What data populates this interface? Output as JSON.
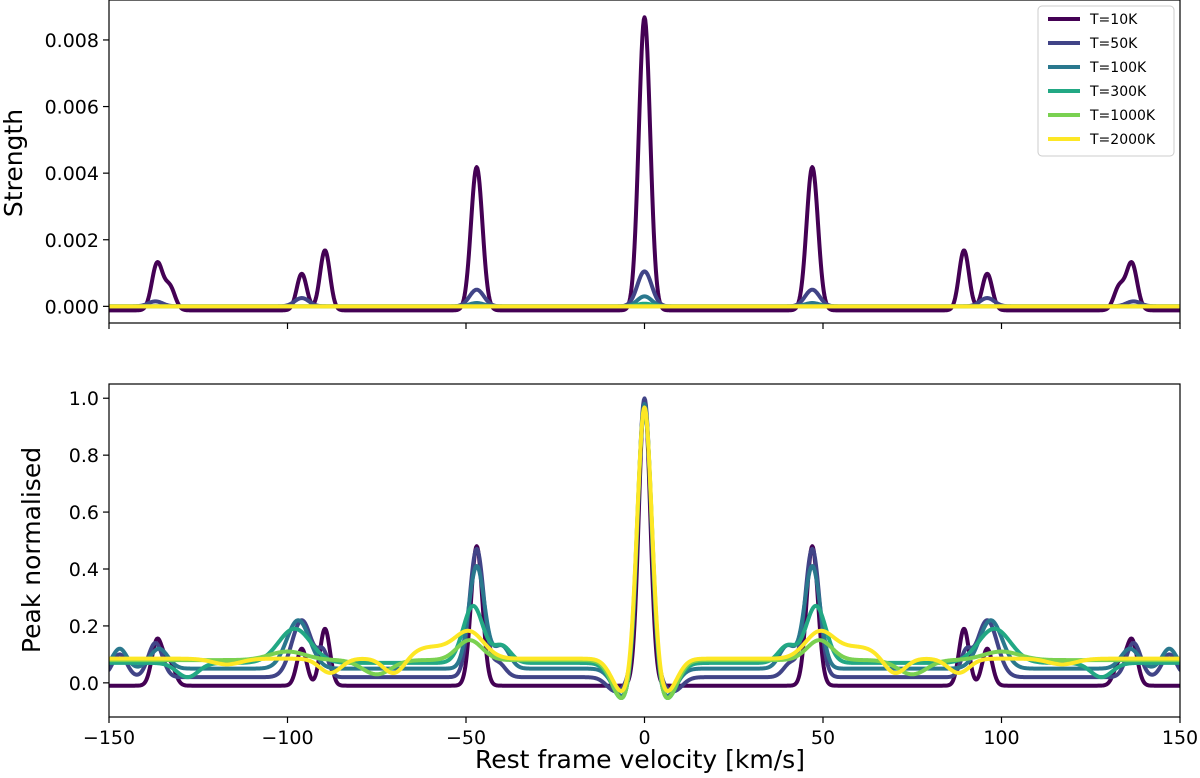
{
  "figure": {
    "xlabel": "Rest frame velocity [km/s]",
    "xlim": [
      -150,
      150
    ],
    "xticks": [
      -150,
      -100,
      -50,
      0,
      50,
      100,
      150
    ],
    "xtick_labels": [
      "−150",
      "−100",
      "−50",
      "0",
      "50",
      "100",
      "150"
    ]
  },
  "legend": {
    "placement": "top-right of upper panel",
    "entries": [
      {
        "label": "T=10K",
        "color": "#440154"
      },
      {
        "label": "T=50K",
        "color": "#414487"
      },
      {
        "label": "T=100K",
        "color": "#2a788e"
      },
      {
        "label": "T=300K",
        "color": "#22a884"
      },
      {
        "label": "T=1000K",
        "color": "#7ad151"
      },
      {
        "label": "T=2000K",
        "color": "#fde725"
      }
    ]
  },
  "chart_data": [
    {
      "type": "line",
      "panel": "top",
      "ylabel": "Strength",
      "ylim": [
        -0.0005,
        0.0092
      ],
      "yticks": [
        0.0,
        0.002,
        0.004,
        0.006,
        0.008
      ],
      "ytick_labels": [
        "0.000",
        "0.002",
        "0.004",
        "0.006",
        "0.008"
      ],
      "grid": false,
      "series": [
        {
          "name": "T=10K",
          "color": "#440154",
          "baseline": -0.00012,
          "peaks": [
            {
              "x": 0,
              "amp": 0.0088,
              "width": 1.6
            },
            {
              "x": -47,
              "amp": 0.0043,
              "width": 1.6
            },
            {
              "x": 47,
              "amp": 0.0043,
              "width": 1.6
            },
            {
              "x": -89.5,
              "amp": 0.0018,
              "width": 1.4
            },
            {
              "x": -96,
              "amp": 0.0011,
              "width": 1.4
            },
            {
              "x": 89.5,
              "amp": 0.0018,
              "width": 1.4
            },
            {
              "x": 96,
              "amp": 0.0011,
              "width": 1.4
            },
            {
              "x": -136.5,
              "amp": 0.0014,
              "width": 1.5
            },
            {
              "x": -133,
              "amp": 0.0007,
              "width": 1.5
            },
            {
              "x": 136.5,
              "amp": 0.0014,
              "width": 1.5
            },
            {
              "x": 133,
              "amp": 0.0007,
              "width": 1.5
            }
          ]
        },
        {
          "name": "T=50K",
          "color": "#414487",
          "baseline": 0.0,
          "peaks": [
            {
              "x": 0,
              "amp": 0.00105,
              "width": 2.0
            },
            {
              "x": -47,
              "amp": 0.0005,
              "width": 2.0
            },
            {
              "x": 47,
              "amp": 0.0005,
              "width": 2.0
            },
            {
              "x": -96,
              "amp": 0.00025,
              "width": 2.0
            },
            {
              "x": 96,
              "amp": 0.00025,
              "width": 2.0
            },
            {
              "x": -137,
              "amp": 0.00015,
              "width": 2.0
            },
            {
              "x": 137,
              "amp": 0.00015,
              "width": 2.0
            }
          ]
        },
        {
          "name": "T=100K",
          "color": "#2a788e",
          "baseline": 0.0,
          "peaks": [
            {
              "x": 0,
              "amp": 0.0003,
              "width": 2.0
            },
            {
              "x": -47,
              "amp": 0.0001,
              "width": 2.0
            },
            {
              "x": 47,
              "amp": 0.0001,
              "width": 2.0
            }
          ]
        },
        {
          "name": "T=300K",
          "color": "#22a884",
          "baseline": 0.0,
          "peaks": [
            {
              "x": 0,
              "amp": 8e-05,
              "width": 2.0
            }
          ]
        },
        {
          "name": "T=1000K",
          "color": "#7ad151",
          "baseline": 0.0,
          "peaks": []
        },
        {
          "name": "T=2000K",
          "color": "#fde725",
          "baseline": 0.0,
          "peaks": []
        }
      ]
    },
    {
      "type": "line",
      "panel": "bottom",
      "ylabel": "Peak normalised",
      "ylim": [
        -0.12,
        1.05
      ],
      "yticks": [
        0.0,
        0.2,
        0.4,
        0.6,
        0.8,
        1.0
      ],
      "ytick_labels": [
        "0.0",
        "0.2",
        "0.4",
        "0.6",
        "0.8",
        "1.0"
      ],
      "grid": false,
      "series": [
        {
          "name": "T=10K",
          "color": "#440154",
          "baseline": -0.01,
          "peaks": [
            {
              "x": 0,
              "amp": 1.0,
              "width": 1.6
            },
            {
              "x": -47,
              "amp": 0.49,
              "width": 1.6
            },
            {
              "x": 47,
              "amp": 0.49,
              "width": 1.6
            },
            {
              "x": -89.5,
              "amp": 0.2,
              "width": 1.4
            },
            {
              "x": -96,
              "amp": 0.13,
              "width": 1.4
            },
            {
              "x": 89.5,
              "amp": 0.2,
              "width": 1.4
            },
            {
              "x": 96,
              "amp": 0.13,
              "width": 1.4
            },
            {
              "x": -136.5,
              "amp": 0.16,
              "width": 1.5
            },
            {
              "x": -133,
              "amp": 0.08,
              "width": 1.5
            },
            {
              "x": 136.5,
              "amp": 0.16,
              "width": 1.5
            },
            {
              "x": 133,
              "amp": 0.08,
              "width": 1.5
            }
          ]
        },
        {
          "name": "T=50K",
          "color": "#414487",
          "baseline": 0.02,
          "peaks": [
            {
              "x": 0,
              "amp": 0.98,
              "width": 1.8
            },
            {
              "x": -47,
              "amp": 0.45,
              "width": 2.0
            },
            {
              "x": 47,
              "amp": 0.45,
              "width": 2.0
            },
            {
              "x": -96,
              "amp": 0.2,
              "width": 2.8
            },
            {
              "x": 96,
              "amp": 0.2,
              "width": 2.8
            },
            {
              "x": -90,
              "amp": 0.08,
              "width": 1.5
            },
            {
              "x": 90,
              "amp": 0.08,
              "width": 1.5
            },
            {
              "x": -137,
              "amp": 0.12,
              "width": 2.0
            },
            {
              "x": 137,
              "amp": 0.12,
              "width": 2.0
            },
            {
              "x": -41,
              "amp": 0.05,
              "width": 2.0
            },
            {
              "x": 41,
              "amp": 0.05,
              "width": 2.0
            },
            {
              "x": -147,
              "amp": 0.08,
              "width": 2.0
            },
            {
              "x": 147,
              "amp": 0.08,
              "width": 2.0
            },
            {
              "x": -8,
              "amp": -0.05,
              "width": 2.5
            },
            {
              "x": 8,
              "amp": -0.05,
              "width": 2.5
            }
          ]
        },
        {
          "name": "T=100K",
          "color": "#2a788e",
          "baseline": 0.05,
          "peaks": [
            {
              "x": 0,
              "amp": 0.95,
              "width": 1.9
            },
            {
              "x": -47,
              "amp": 0.36,
              "width": 2.2
            },
            {
              "x": 47,
              "amp": 0.36,
              "width": 2.2
            },
            {
              "x": -97,
              "amp": 0.17,
              "width": 3.2
            },
            {
              "x": 97,
              "amp": 0.17,
              "width": 3.2
            },
            {
              "x": -136,
              "amp": 0.07,
              "width": 2.5
            },
            {
              "x": 136,
              "amp": 0.07,
              "width": 2.5
            },
            {
              "x": -40,
              "amp": 0.08,
              "width": 2.2
            },
            {
              "x": 40,
              "amp": 0.08,
              "width": 2.2
            },
            {
              "x": -147,
              "amp": 0.07,
              "width": 2.0
            },
            {
              "x": 147,
              "amp": 0.07,
              "width": 2.0
            },
            {
              "x": -6,
              "amp": -0.1,
              "width": 2.8
            },
            {
              "x": 6,
              "amp": -0.1,
              "width": 2.8
            }
          ]
        },
        {
          "name": "T=300K",
          "color": "#22a884",
          "baseline": 0.07,
          "peaks": [
            {
              "x": 0,
              "amp": 0.93,
              "width": 2.0
            },
            {
              "x": -48,
              "amp": 0.2,
              "width": 2.8
            },
            {
              "x": 48,
              "amp": 0.2,
              "width": 2.8
            },
            {
              "x": -98,
              "amp": 0.12,
              "width": 4.5
            },
            {
              "x": 98,
              "amp": 0.12,
              "width": 4.5
            },
            {
              "x": -40,
              "amp": 0.06,
              "width": 2.5
            },
            {
              "x": 40,
              "amp": 0.06,
              "width": 2.5
            },
            {
              "x": -128,
              "amp": -0.05,
              "width": 3.0
            },
            {
              "x": 128,
              "amp": -0.05,
              "width": 3.0
            },
            {
              "x": -6,
              "amp": -0.13,
              "width": 3.0
            },
            {
              "x": 6,
              "amp": -0.13,
              "width": 3.0
            }
          ]
        },
        {
          "name": "T=1000K",
          "color": "#7ad151",
          "baseline": 0.08,
          "peaks": [
            {
              "x": 0,
              "amp": 0.92,
              "width": 2.0
            },
            {
              "x": -49,
              "amp": 0.07,
              "width": 3.5
            },
            {
              "x": 49,
              "amp": 0.07,
              "width": 3.5
            },
            {
              "x": -100,
              "amp": 0.03,
              "width": 5.0
            },
            {
              "x": 100,
              "amp": 0.03,
              "width": 5.0
            },
            {
              "x": -75,
              "amp": -0.05,
              "width": 4.0
            },
            {
              "x": 75,
              "amp": -0.05,
              "width": 4.0
            },
            {
              "x": -6,
              "amp": -0.14,
              "width": 3.0
            },
            {
              "x": 6,
              "amp": -0.14,
              "width": 3.0
            }
          ]
        },
        {
          "name": "T=2000K",
          "color": "#fde725",
          "baseline": 0.085,
          "peaks": [
            {
              "x": 0,
              "amp": 0.915,
              "width": 2.0
            },
            {
              "x": -49,
              "amp": 0.09,
              "width": 4.0
            },
            {
              "x": 49,
              "amp": 0.09,
              "width": 4.0
            },
            {
              "x": -60,
              "amp": 0.04,
              "width": 6.0
            },
            {
              "x": 60,
              "amp": 0.04,
              "width": 6.0
            },
            {
              "x": -88,
              "amp": -0.05,
              "width": 3.0
            },
            {
              "x": 88,
              "amp": -0.05,
              "width": 3.0
            },
            {
              "x": -70,
              "amp": -0.06,
              "width": 3.0
            },
            {
              "x": 70,
              "amp": -0.06,
              "width": 3.0
            },
            {
              "x": -117,
              "amp": -0.02,
              "width": 4.0
            },
            {
              "x": 117,
              "amp": -0.02,
              "width": 4.0
            },
            {
              "x": -6,
              "amp": -0.12,
              "width": 3.0
            },
            {
              "x": 6,
              "amp": -0.12,
              "width": 3.0
            }
          ]
        }
      ]
    }
  ]
}
